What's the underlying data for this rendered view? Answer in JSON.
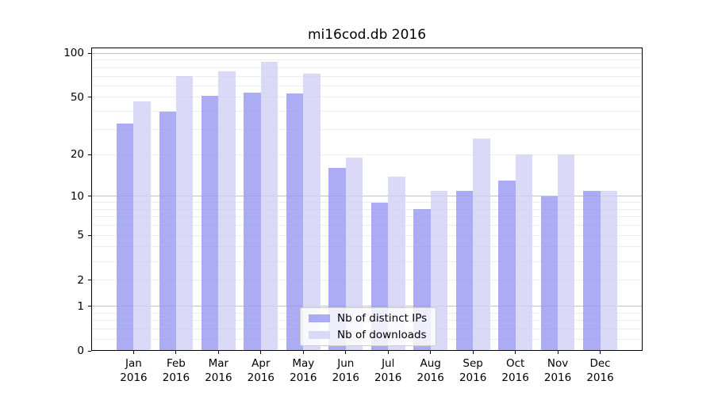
{
  "chart_data": {
    "type": "bar",
    "title": "mi16cod.db 2016",
    "categories": [
      "Jan 2016",
      "Feb 2016",
      "Mar 2016",
      "Apr 2016",
      "May 2016",
      "Jun 2016",
      "Jul 2016",
      "Aug 2016",
      "Sep 2016",
      "Oct 2016",
      "Nov 2016",
      "Dec 2016"
    ],
    "series": [
      {
        "name": "Nb of distinct IPs",
        "color": "#9a9af3",
        "values": [
          33,
          40,
          51,
          54,
          53,
          16,
          9,
          8,
          11,
          13,
          10,
          11
        ]
      },
      {
        "name": "Nb of downloads",
        "color": "#d2d2f6",
        "values": [
          47,
          70,
          75,
          88,
          73,
          19,
          14,
          11,
          26,
          20,
          20,
          11
        ]
      }
    ],
    "xlabel": "",
    "ylabel": "",
    "y_ticks": [
      0,
      1,
      2,
      5,
      10,
      20,
      50,
      100
    ],
    "y_scale": "log1p",
    "ylim": [
      0,
      110
    ],
    "grid": true,
    "gridline_decade_color": "#c2c2c2",
    "gridline_minor_color": "#ededed",
    "legend_position": "lower center"
  }
}
